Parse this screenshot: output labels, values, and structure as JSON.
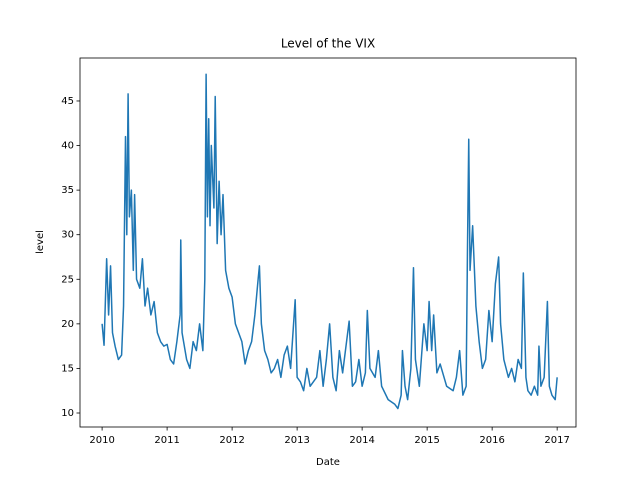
{
  "chart_data": {
    "type": "line",
    "title": "Level of the VIX",
    "x_label": "Date",
    "y_label": "level",
    "xlim": [
      2009.66,
      2017.29
    ],
    "ylim": [
      8.43,
      49.82
    ],
    "xticks": [
      2010,
      2011,
      2012,
      2013,
      2014,
      2015,
      2016,
      2017
    ],
    "yticks": [
      10,
      15,
      20,
      25,
      30,
      35,
      40,
      45
    ],
    "grid": false,
    "series": [
      {
        "color": "#1f77b4",
        "x": [
          2010.0,
          2010.03,
          2010.07,
          2010.1,
          2010.13,
          2010.16,
          2010.2,
          2010.25,
          2010.3,
          2010.33,
          2010.36,
          2010.38,
          2010.4,
          2010.42,
          2010.45,
          2010.48,
          2010.5,
          2010.53,
          2010.58,
          2010.62,
          2010.66,
          2010.7,
          2010.75,
          2010.8,
          2010.85,
          2010.9,
          2010.95,
          2011.0,
          2011.05,
          2011.1,
          2011.15,
          2011.2,
          2011.21,
          2011.23,
          2011.3,
          2011.35,
          2011.4,
          2011.45,
          2011.5,
          2011.55,
          2011.58,
          2011.6,
          2011.62,
          2011.64,
          2011.66,
          2011.68,
          2011.72,
          2011.74,
          2011.77,
          2011.8,
          2011.83,
          2011.86,
          2011.9,
          2011.95,
          2012.0,
          2012.05,
          2012.1,
          2012.15,
          2012.2,
          2012.25,
          2012.3,
          2012.35,
          2012.4,
          2012.42,
          2012.45,
          2012.5,
          2012.55,
          2012.6,
          2012.65,
          2012.7,
          2012.75,
          2012.8,
          2012.85,
          2012.9,
          2012.97,
          2013.0,
          2013.05,
          2013.1,
          2013.15,
          2013.2,
          2013.3,
          2013.35,
          2013.4,
          2013.45,
          2013.5,
          2013.55,
          2013.6,
          2013.65,
          2013.7,
          2013.8,
          2013.85,
          2013.9,
          2013.95,
          2014.0,
          2014.05,
          2014.08,
          2014.12,
          2014.2,
          2014.25,
          2014.3,
          2014.4,
          2014.5,
          2014.55,
          2014.6,
          2014.62,
          2014.66,
          2014.7,
          2014.75,
          2014.79,
          2014.82,
          2014.88,
          2014.95,
          2015.0,
          2015.03,
          2015.07,
          2015.1,
          2015.15,
          2015.2,
          2015.3,
          2015.4,
          2015.45,
          2015.5,
          2015.55,
          2015.6,
          2015.62,
          2015.64,
          2015.66,
          2015.7,
          2015.75,
          2015.8,
          2015.85,
          2015.9,
          2015.95,
          2016.0,
          2016.05,
          2016.1,
          2016.13,
          2016.18,
          2016.25,
          2016.3,
          2016.35,
          2016.4,
          2016.45,
          2016.48,
          2016.52,
          2016.55,
          2016.6,
          2016.65,
          2016.7,
          2016.72,
          2016.75,
          2016.8,
          2016.85,
          2016.88,
          2016.92,
          2016.97,
          2017.0
        ],
        "values": [
          20,
          17.6,
          27.3,
          21,
          26.5,
          19,
          17.5,
          16,
          16.5,
          22,
          41,
          30,
          45.8,
          32,
          35,
          26,
          34.5,
          25,
          24,
          27.3,
          22,
          24,
          21,
          22.5,
          19,
          18,
          17.5,
          17.7,
          16,
          15.5,
          18,
          21,
          29.4,
          19,
          16,
          15,
          18,
          17,
          20,
          17,
          25,
          48,
          32,
          43,
          31,
          40,
          33,
          45.5,
          29,
          36,
          30,
          34.5,
          26,
          24,
          23,
          20,
          19,
          18,
          15.5,
          17,
          18,
          21,
          25,
          26.5,
          20,
          17,
          16,
          14.5,
          15,
          16,
          14,
          16.5,
          17.5,
          15,
          22.7,
          14,
          13.5,
          12.5,
          15,
          13,
          14,
          17,
          13,
          16,
          20,
          14,
          12.5,
          17,
          14.5,
          20.3,
          13,
          13.5,
          16,
          13,
          14.5,
          21.5,
          15,
          14,
          17,
          13,
          11.5,
          11,
          10.5,
          12,
          17,
          13,
          11.5,
          15,
          26.3,
          16,
          13,
          20,
          17,
          22.5,
          17,
          21,
          14.5,
          15.5,
          13,
          12.5,
          14,
          17,
          12,
          13,
          28,
          40.7,
          26,
          31,
          22,
          18,
          15,
          16,
          21.5,
          18,
          24.5,
          27.5,
          20,
          16,
          14,
          15,
          13.5,
          16,
          15,
          25.7,
          14,
          12.5,
          12,
          13,
          12,
          17.5,
          13,
          14,
          22.5,
          13,
          12,
          11.5,
          14
        ]
      }
    ]
  }
}
